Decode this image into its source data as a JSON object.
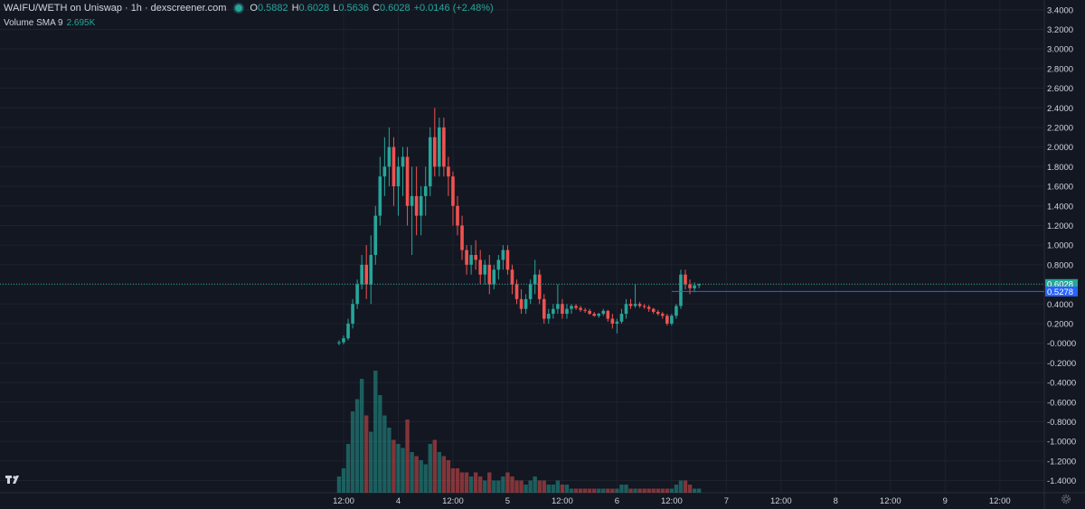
{
  "header": {
    "symbol": "WAIFU/WETH on Uniswap",
    "interval": "1h",
    "source": "dexscreener.com",
    "ohlc": {
      "o_label": "O",
      "o_value": "0.5882",
      "h_label": "H",
      "h_value": "0.6028",
      "l_label": "L",
      "l_value": "0.5636",
      "c_label": "C",
      "c_value": "0.6028",
      "change": "+0.0146 (+2.48%)"
    }
  },
  "volume_legend": {
    "label": "Volume SMA 9",
    "value": "2.695K"
  },
  "colors": {
    "background": "#131722",
    "up": "#26a69a",
    "down": "#ef5350",
    "grid": "#1e222d",
    "axis_text": "#d1d4dc",
    "last_price": "#26a69a",
    "sma": "#2962ff"
  },
  "icons": {
    "logo": "tradingview-logo-icon",
    "settings": "gear-icon"
  },
  "chart_data": {
    "type": "candlestick",
    "interval": "1h",
    "y_axis_labels": [
      "3.4000",
      "3.2000",
      "3.0000",
      "2.8000",
      "2.6000",
      "2.4000",
      "2.2000",
      "2.0000",
      "1.8000",
      "1.6000",
      "1.4000",
      "1.2000",
      "1.0000",
      "0.8000",
      "0.6000",
      "0.4000",
      "0.2000",
      "-0.0000",
      "-0.2000",
      "-0.4000",
      "-0.6000",
      "-0.8000",
      "-1.0000",
      "-1.2000",
      "-1.4000"
    ],
    "y_tick_values": [
      3.4,
      3.2,
      3.0,
      2.8,
      2.6,
      2.4,
      2.2,
      2.0,
      1.8,
      1.6,
      1.4,
      1.2,
      1.0,
      0.8,
      0.6,
      0.4,
      0.2,
      0.0,
      -0.2,
      -0.4,
      -0.6,
      -0.8,
      -1.0,
      -1.2,
      -1.4
    ],
    "ylim": [
      -1.5,
      3.5
    ],
    "x_axis_labels": [
      "12:00",
      "4",
      "12:00",
      "5",
      "12:00",
      "6",
      "12:00",
      "7",
      "12:00",
      "8",
      "12:00",
      "9",
      "12:00"
    ],
    "x_tick_hours": [
      0,
      12,
      24,
      36,
      48,
      60,
      72,
      84,
      96,
      108,
      120,
      132,
      144
    ],
    "x_first_candle_hour": -1,
    "last_price_label": "0.6028",
    "last_price": 0.6028,
    "sma_price_label": "0.5278",
    "sma_price": 0.5278,
    "candles": [
      [
        0.0,
        0.03,
        -0.02,
        0.01,
        0.4
      ],
      [
        0.01,
        0.08,
        -0.01,
        0.05,
        0.6
      ],
      [
        0.05,
        0.25,
        0.03,
        0.2,
        1.2
      ],
      [
        0.2,
        0.45,
        0.15,
        0.4,
        2.0
      ],
      [
        0.4,
        0.65,
        0.35,
        0.6,
        2.3
      ],
      [
        0.6,
        0.9,
        0.55,
        0.8,
        2.8
      ],
      [
        0.8,
        1.0,
        0.45,
        0.6,
        1.9
      ],
      [
        0.6,
        1.1,
        0.4,
        0.9,
        1.5
      ],
      [
        0.9,
        1.4,
        0.8,
        1.3,
        3.0
      ],
      [
        1.3,
        1.9,
        1.2,
        1.7,
        2.4
      ],
      [
        1.7,
        2.1,
        1.5,
        1.8,
        1.9
      ],
      [
        1.8,
        2.2,
        1.6,
        2.0,
        1.6
      ],
      [
        2.0,
        2.1,
        1.4,
        1.6,
        1.3
      ],
      [
        1.6,
        1.9,
        1.3,
        1.8,
        1.2
      ],
      [
        1.8,
        2.0,
        1.5,
        1.9,
        1.1
      ],
      [
        1.9,
        2.0,
        1.2,
        1.4,
        1.8
      ],
      [
        1.4,
        1.8,
        0.9,
        1.5,
        1.0
      ],
      [
        1.5,
        1.8,
        1.1,
        1.3,
        0.9
      ],
      [
        1.3,
        1.6,
        1.1,
        1.5,
        0.8
      ],
      [
        1.5,
        1.8,
        1.3,
        1.6,
        0.7
      ],
      [
        1.6,
        2.2,
        1.5,
        2.1,
        1.2
      ],
      [
        2.1,
        2.4,
        1.7,
        1.8,
        1.3
      ],
      [
        1.8,
        2.3,
        1.7,
        2.2,
        1.0
      ],
      [
        2.2,
        2.3,
        1.7,
        1.8,
        0.9
      ],
      [
        1.8,
        1.9,
        1.5,
        1.7,
        0.8
      ],
      [
        1.7,
        1.75,
        1.2,
        1.4,
        0.6
      ],
      [
        1.4,
        1.5,
        1.1,
        1.2,
        0.6
      ],
      [
        1.2,
        1.3,
        0.85,
        0.95,
        0.5
      ],
      [
        0.95,
        1.0,
        0.7,
        0.8,
        0.5
      ],
      [
        0.8,
        1.0,
        0.7,
        0.9,
        0.4
      ],
      [
        0.9,
        1.05,
        0.75,
        0.85,
        0.5
      ],
      [
        0.85,
        0.95,
        0.6,
        0.7,
        0.4
      ],
      [
        0.7,
        0.85,
        0.6,
        0.8,
        0.3
      ],
      [
        0.8,
        0.9,
        0.5,
        0.6,
        0.5
      ],
      [
        0.6,
        0.8,
        0.55,
        0.75,
        0.3
      ],
      [
        0.75,
        0.9,
        0.65,
        0.85,
        0.3
      ],
      [
        0.85,
        1.0,
        0.75,
        0.95,
        0.4
      ],
      [
        0.95,
        1.0,
        0.7,
        0.75,
        0.5
      ],
      [
        0.75,
        0.8,
        0.5,
        0.6,
        0.4
      ],
      [
        0.6,
        0.65,
        0.4,
        0.45,
        0.3
      ],
      [
        0.45,
        0.55,
        0.3,
        0.35,
        0.3
      ],
      [
        0.35,
        0.5,
        0.3,
        0.45,
        0.2
      ],
      [
        0.45,
        0.65,
        0.4,
        0.6,
        0.3
      ],
      [
        0.6,
        0.85,
        0.5,
        0.7,
        0.4
      ],
      [
        0.7,
        0.75,
        0.4,
        0.45,
        0.3
      ],
      [
        0.45,
        0.5,
        0.2,
        0.25,
        0.3
      ],
      [
        0.25,
        0.35,
        0.2,
        0.3,
        0.2
      ],
      [
        0.3,
        0.4,
        0.25,
        0.35,
        0.2
      ],
      [
        0.35,
        0.6,
        0.3,
        0.4,
        0.3
      ],
      [
        0.4,
        0.45,
        0.25,
        0.3,
        0.2
      ],
      [
        0.3,
        0.4,
        0.25,
        0.35,
        0.2
      ],
      [
        0.35,
        0.4,
        0.3,
        0.38,
        0.1
      ],
      [
        0.38,
        0.4,
        0.34,
        0.36,
        0.1
      ],
      [
        0.36,
        0.38,
        0.32,
        0.34,
        0.1
      ],
      [
        0.34,
        0.36,
        0.31,
        0.33,
        0.1
      ],
      [
        0.33,
        0.35,
        0.29,
        0.3,
        0.1
      ],
      [
        0.3,
        0.32,
        0.27,
        0.28,
        0.1
      ],
      [
        0.28,
        0.31,
        0.26,
        0.3,
        0.1
      ],
      [
        0.3,
        0.35,
        0.28,
        0.33,
        0.1
      ],
      [
        0.33,
        0.34,
        0.22,
        0.25,
        0.1
      ],
      [
        0.25,
        0.3,
        0.15,
        0.2,
        0.1
      ],
      [
        0.2,
        0.25,
        0.1,
        0.22,
        0.1
      ],
      [
        0.22,
        0.35,
        0.2,
        0.3,
        0.2
      ],
      [
        0.3,
        0.45,
        0.25,
        0.4,
        0.2
      ],
      [
        0.4,
        0.45,
        0.35,
        0.38,
        0.1
      ],
      [
        0.38,
        0.6,
        0.36,
        0.4,
        0.1
      ],
      [
        0.4,
        0.42,
        0.36,
        0.38,
        0.1
      ],
      [
        0.38,
        0.4,
        0.35,
        0.37,
        0.1
      ],
      [
        0.37,
        0.39,
        0.32,
        0.35,
        0.1
      ],
      [
        0.35,
        0.36,
        0.3,
        0.32,
        0.1
      ],
      [
        0.32,
        0.34,
        0.28,
        0.3,
        0.1
      ],
      [
        0.3,
        0.32,
        0.25,
        0.28,
        0.1
      ],
      [
        0.28,
        0.3,
        0.18,
        0.2,
        0.1
      ],
      [
        0.2,
        0.3,
        0.18,
        0.28,
        0.1
      ],
      [
        0.28,
        0.4,
        0.25,
        0.38,
        0.2
      ],
      [
        0.38,
        0.75,
        0.35,
        0.7,
        0.3
      ],
      [
        0.7,
        0.75,
        0.55,
        0.6,
        0.3
      ],
      [
        0.6,
        0.65,
        0.5,
        0.56,
        0.2
      ],
      [
        0.56,
        0.62,
        0.52,
        0.59,
        0.1
      ],
      [
        0.59,
        0.61,
        0.56,
        0.6,
        0.1
      ]
    ]
  }
}
